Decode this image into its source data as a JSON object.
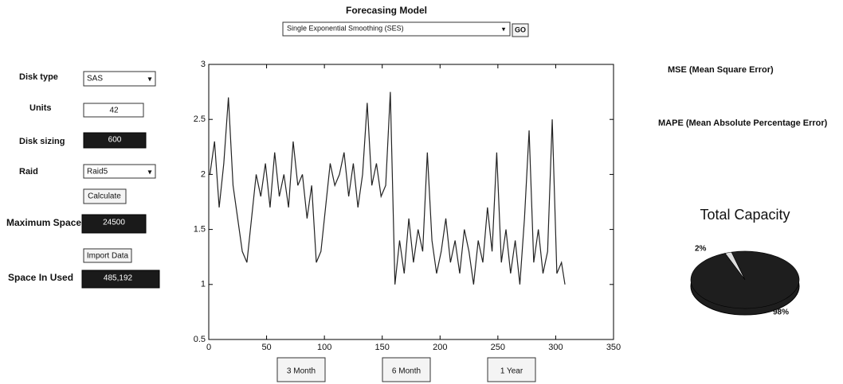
{
  "header": {
    "title": "Forecasing Model"
  },
  "model_select": {
    "value": "Single Exponential Smoothing (SES)"
  },
  "go_button": {
    "label": "GO"
  },
  "form": {
    "disk_type": {
      "label": "Disk type",
      "value": "SAS"
    },
    "units": {
      "label": "Units",
      "value": "42"
    },
    "disk_sizing": {
      "label": "Disk sizing",
      "value": "600"
    },
    "raid": {
      "label": "Raid",
      "value": "Raid5"
    },
    "calculate_button": "Calculate",
    "maximum_space": {
      "label": "Maximum Space",
      "value": "24500"
    },
    "import_button": "Import Data",
    "space_in_used": {
      "label": "Space In Used",
      "value": "485,192"
    }
  },
  "period_buttons": [
    "3 Month",
    "6 Month",
    "1 Year"
  ],
  "results": {
    "mse_label": "MSE (Mean Square Error)",
    "mape_label": "MAPE (Mean Absolute Percentage Error)"
  },
  "chart_data": [
    {
      "type": "line",
      "x": [
        1,
        5,
        9,
        13,
        17,
        21,
        25,
        29,
        33,
        37,
        41,
        45,
        49,
        53,
        57,
        61,
        65,
        69,
        73,
        77,
        81,
        85,
        89,
        93,
        97,
        101,
        105,
        109,
        113,
        117,
        121,
        125,
        129,
        133,
        137,
        141,
        145,
        149,
        153,
        157,
        161,
        165,
        169,
        173,
        177,
        181,
        185,
        189,
        193,
        197,
        201,
        205,
        209,
        213,
        217,
        221,
        225,
        229,
        233,
        237,
        241,
        245,
        249,
        253,
        257,
        261,
        265,
        269,
        273,
        277,
        281,
        285,
        289,
        293,
        297,
        301,
        305,
        308
      ],
      "series": [
        {
          "color": "#222222",
          "values": [
            2.0,
            2.3,
            1.7,
            2.1,
            2.7,
            1.9,
            1.6,
            1.3,
            1.2,
            1.6,
            2.0,
            1.8,
            2.1,
            1.7,
            2.2,
            1.8,
            2.0,
            1.7,
            2.3,
            1.9,
            2.0,
            1.6,
            1.9,
            1.2,
            1.3,
            1.7,
            2.1,
            1.9,
            2.0,
            2.2,
            1.8,
            2.1,
            1.7,
            2.0,
            2.65,
            1.9,
            2.1,
            1.8,
            1.9,
            2.75,
            1.0,
            1.4,
            1.1,
            1.6,
            1.2,
            1.5,
            1.3,
            2.2,
            1.4,
            1.1,
            1.3,
            1.6,
            1.2,
            1.4,
            1.1,
            1.5,
            1.3,
            1.0,
            1.4,
            1.2,
            1.7,
            1.3,
            2.2,
            1.2,
            1.5,
            1.1,
            1.4,
            1.0,
            1.6,
            2.4,
            1.2,
            1.5,
            1.1,
            1.3,
            2.5,
            1.1,
            1.2,
            1.0
          ]
        }
      ],
      "xlim": [
        0,
        350
      ],
      "xticks": [
        0,
        50,
        100,
        150,
        200,
        250,
        300,
        350
      ],
      "ylim": [
        0.5,
        3
      ],
      "yticks": [
        0.5,
        1,
        1.5,
        2,
        2.5,
        3
      ]
    },
    {
      "type": "pie",
      "title": "Total Capacity",
      "values": [
        2,
        98
      ],
      "value_labels": [
        "2%",
        "98%"
      ],
      "colors": [
        "#dddddd",
        "#1e1e1e"
      ]
    }
  ]
}
